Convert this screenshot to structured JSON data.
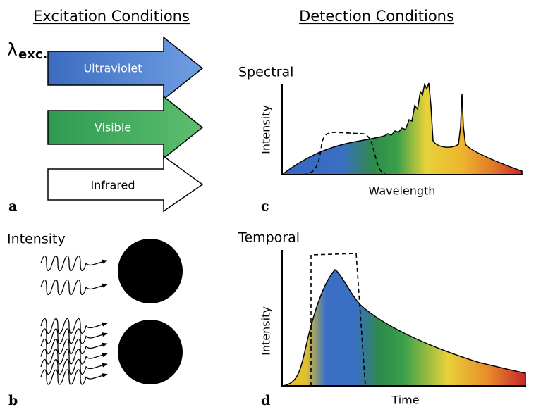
{
  "headers": {
    "excitation": "Excitation Conditions",
    "detection": "Detection Conditions"
  },
  "panels": {
    "a": {
      "label": "a",
      "symbol": "λ",
      "subscript": "exc.",
      "arrows": [
        "Ultraviolet",
        "Visible",
        "Infrared"
      ]
    },
    "b": {
      "label": "b",
      "title": "Intensity"
    },
    "c": {
      "label": "c",
      "title": "Spectral",
      "y_axis": "Intensity",
      "x_axis": "Wavelength"
    },
    "d": {
      "label": "d",
      "title": "Temporal",
      "y_axis": "Intensity",
      "x_axis": "Time"
    }
  }
}
